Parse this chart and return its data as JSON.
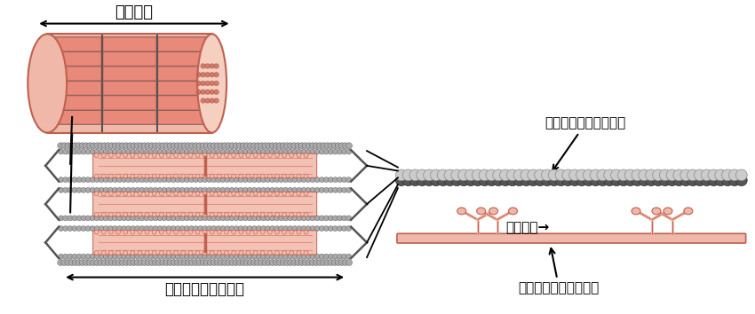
{
  "bg_color": "#ffffff",
  "text_kinsen": "筋原線維",
  "text_sarcomere": "サルコメア（筋節）",
  "text_actin": "アクチンフィラメント",
  "text_myosin": "ミオシン→",
  "text_myosin_fil": "ミオシンフィラメント",
  "salmon": "#e8897a",
  "dark_salmon": "#c06050",
  "light_salmon": "#f0b8a8",
  "pale_salmon": "#f5cfc0",
  "gray": "#888888",
  "dark_gray": "#555555",
  "light_gray": "#cccccc",
  "chain_gray": "#aaaaaa"
}
